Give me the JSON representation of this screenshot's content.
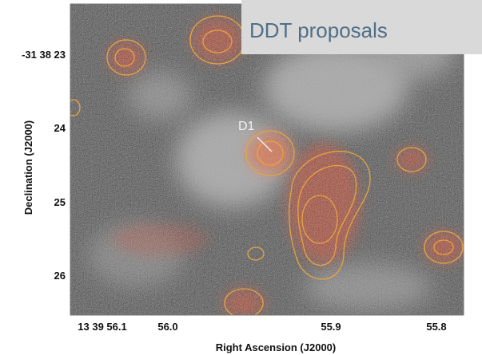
{
  "banner": {
    "title": "DDT proposals"
  },
  "figure": {
    "x_label": "Right Ascension (J2000)",
    "y_label": "Declination (J2000)",
    "x_ticks": [
      "13 39 56.1",
      "56.0",
      "55.9",
      "55.8"
    ],
    "y_ticks": [
      "-31 38 23",
      "24",
      "25",
      "26"
    ],
    "annotation": "D1"
  }
}
